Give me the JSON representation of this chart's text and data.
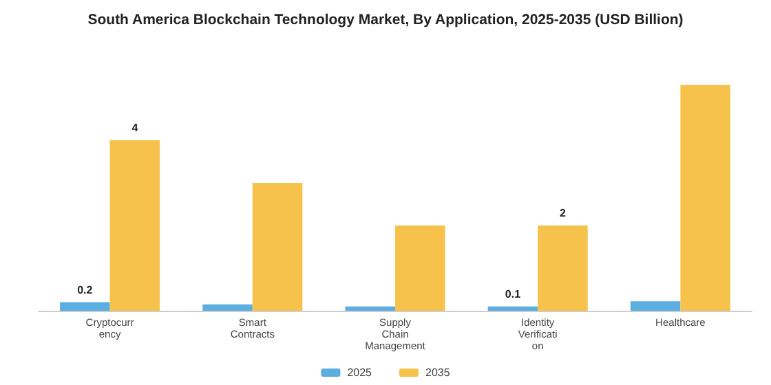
{
  "chart_data": {
    "type": "bar",
    "title": "South America Blockchain Technology Market, By Application, 2025-2035 (USD Billion)",
    "categories": [
      "Cryptocurrency",
      "Smart Contracts",
      "Supply Chain Management",
      "Identity Verification",
      "Healthcare"
    ],
    "series": [
      {
        "name": "2025",
        "color": "#5aaee0",
        "values": [
          0.2,
          0.15,
          0.1,
          0.1,
          0.22
        ],
        "value_labels": [
          "0.2",
          null,
          null,
          "0.1",
          null
        ]
      },
      {
        "name": "2035",
        "color": "#f7c24c",
        "values": [
          4,
          3.0,
          2.0,
          2,
          5.3
        ],
        "value_labels": [
          "4",
          null,
          null,
          "2",
          null
        ]
      }
    ],
    "legend": "bottom",
    "grid": false
  }
}
